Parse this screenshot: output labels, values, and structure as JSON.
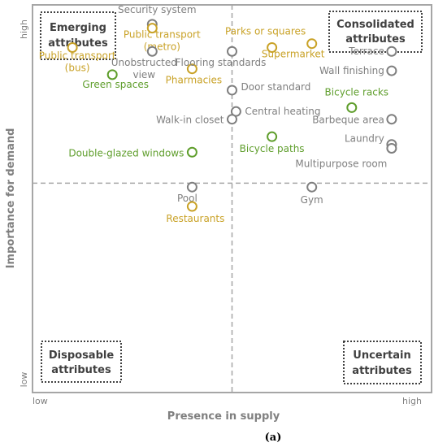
{
  "chart_data": {
    "type": "scatter",
    "xlabel": "Presence in supply",
    "ylabel": "Importance for demand",
    "xlim": [
      0,
      10
    ],
    "ylim": [
      0,
      10
    ],
    "x_ticks": [
      "low",
      "high"
    ],
    "y_ticks": [
      "low",
      "high"
    ],
    "grid": false,
    "dividers": {
      "x": 5,
      "y": 5.4
    },
    "caption": "(a)",
    "quadrants": {
      "top_left": [
        "Emerging",
        "attributes"
      ],
      "top_right": [
        "Consolidated",
        "attributes"
      ],
      "bottom_left": [
        "Disposable",
        "attributes"
      ],
      "bottom_right": [
        "Uncertain",
        "attributes"
      ]
    },
    "colors": {
      "gray": "#7f7f7f",
      "gold": "#c9a227",
      "green": "#5f9e2c",
      "axis": "#a6a6a6",
      "divider": "#a6a6a6",
      "box_border": "#404040"
    },
    "points": [
      {
        "label": [
          "Security system"
        ],
        "x": 3.0,
        "y": 9.5,
        "color": "gray"
      },
      {
        "label": [
          "Public transport",
          "(metro)"
        ],
        "x": 3.0,
        "y": 9.4,
        "color": "gold"
      },
      {
        "label": [
          "Unobstructed",
          "view"
        ],
        "x": 3.0,
        "y": 8.8,
        "color": "gray"
      },
      {
        "label": [
          "Public transport",
          "(bus)"
        ],
        "x": 1.0,
        "y": 8.9,
        "color": "gold"
      },
      {
        "label": [
          "Green spaces"
        ],
        "x": 2.0,
        "y": 8.2,
        "color": "green"
      },
      {
        "label": [
          "Pharmacies"
        ],
        "x": 4.0,
        "y": 8.35,
        "color": "gold"
      },
      {
        "label": [
          "Flooring standards"
        ],
        "x": 5.0,
        "y": 8.8,
        "color": "gray"
      },
      {
        "label": [
          "Parks or squares"
        ],
        "x": 6.0,
        "y": 8.9,
        "color": "gold"
      },
      {
        "label": [
          "Supermarket"
        ],
        "x": 7.0,
        "y": 9.0,
        "color": "gold"
      },
      {
        "label": [
          "Terrace"
        ],
        "x": 9.0,
        "y": 8.8,
        "color": "gray"
      },
      {
        "label": [
          "Wall finishing"
        ],
        "x": 9.0,
        "y": 8.3,
        "color": "gray"
      },
      {
        "label": [
          "Door standard"
        ],
        "x": 5.0,
        "y": 7.8,
        "color": "gray"
      },
      {
        "label": [
          "Bicycle racks"
        ],
        "x": 8.0,
        "y": 7.35,
        "color": "green"
      },
      {
        "label": [
          "Central heating"
        ],
        "x": 5.1,
        "y": 7.25,
        "color": "gray"
      },
      {
        "label": [
          "Walk-in closet"
        ],
        "x": 5.0,
        "y": 7.05,
        "color": "gray"
      },
      {
        "label": [
          "Barbeque area"
        ],
        "x": 9.0,
        "y": 7.05,
        "color": "gray"
      },
      {
        "label": [
          "Laundry"
        ],
        "x": 9.0,
        "y": 6.4,
        "color": "gray"
      },
      {
        "label": [
          "Multipurpose room"
        ],
        "x": 9.0,
        "y": 6.3,
        "color": "gray"
      },
      {
        "label": [
          "Bicycle paths"
        ],
        "x": 6.0,
        "y": 6.6,
        "color": "green"
      },
      {
        "label": [
          "Double-glazed windows"
        ],
        "x": 4.0,
        "y": 6.2,
        "color": "green"
      },
      {
        "label": [
          "Pool"
        ],
        "x": 4.0,
        "y": 5.3,
        "color": "gray"
      },
      {
        "label": [
          "Gym"
        ],
        "x": 7.0,
        "y": 5.3,
        "color": "gray"
      },
      {
        "label": [
          "Restaurants"
        ],
        "x": 4.0,
        "y": 4.8,
        "color": "gold"
      }
    ]
  }
}
